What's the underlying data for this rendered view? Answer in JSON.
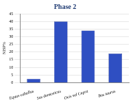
{
  "chart_data": {
    "type": "bar",
    "title": "Phase 2",
    "y_label": "NISP%",
    "categories": [
      "Equus caballus",
      "Sus domesticus",
      "Ovis vel Capra",
      "Bos taurus"
    ],
    "values": [
      2.5,
      40,
      34,
      19
    ],
    "color": "#2f4fc2",
    "ylim": [
      0,
      45
    ],
    "yticks": [
      0,
      5,
      10,
      15,
      20,
      25,
      30,
      35,
      40,
      45
    ],
    "grid": true
  }
}
